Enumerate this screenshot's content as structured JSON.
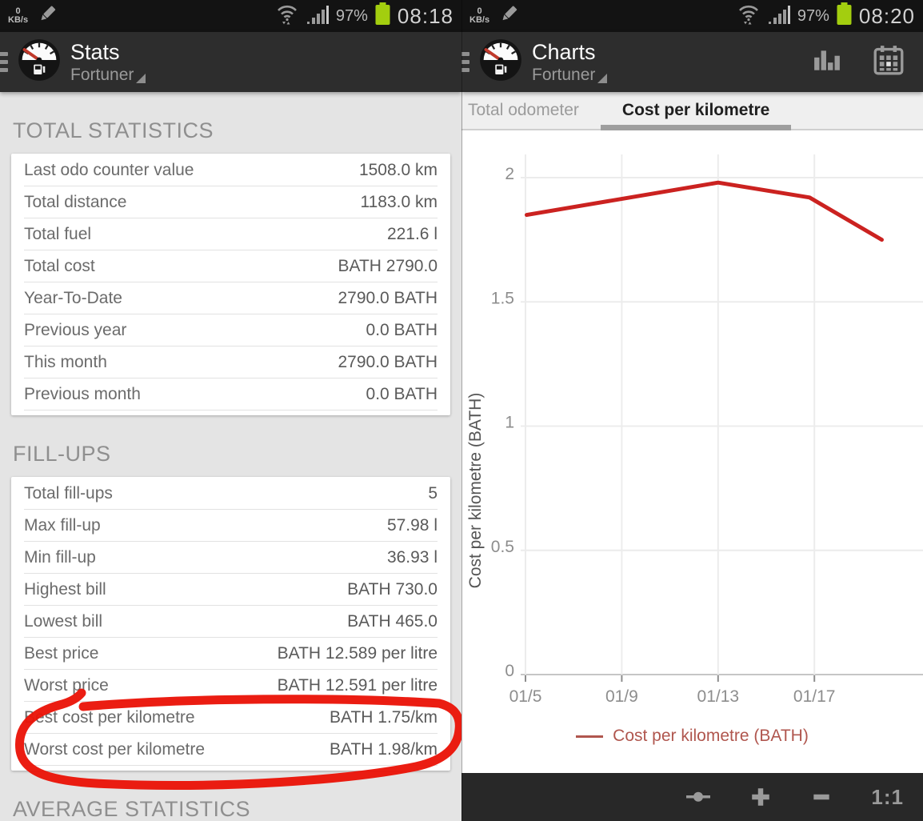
{
  "colors": {
    "chart_line_red": "#cb2220",
    "legend_red": "#b0564e",
    "annotation_red": "#ea1408",
    "battery_green": "#a3ce0f",
    "statusbar_icon_gray": "#9a9a9a",
    "grid_gray": "#ececec",
    "axis_gray": "#c6c6c6",
    "tick_label_gray": "#8d8d8d"
  },
  "left_screen": {
    "status_bar": {
      "kbps_value": "0",
      "kbps_unit": "KB/s",
      "battery_percent": "97%",
      "time": "08:18",
      "icons": [
        "data-pencil-icon",
        "wifi-icon",
        "signal-icon",
        "battery-icon"
      ]
    },
    "header": {
      "title": "Stats",
      "subtitle": "Fortuner",
      "icons": [
        "menu-icon",
        "fuel-gauge-logo-icon",
        "dropdown-triangle-icon"
      ]
    },
    "sections": [
      {
        "title": "TOTAL STATISTICS",
        "rows": [
          {
            "label": "Last odo counter value",
            "value": "1508.0 km"
          },
          {
            "label": "Total distance",
            "value": "1183.0 km"
          },
          {
            "label": "Total fuel",
            "value": "221.6 l"
          },
          {
            "label": "Total cost",
            "value": "BATH 2790.0"
          },
          {
            "label": "Year-To-Date",
            "value": "2790.0 BATH"
          },
          {
            "label": "Previous year",
            "value": "0.0 BATH"
          },
          {
            "label": "This month",
            "value": "2790.0 BATH"
          },
          {
            "label": "Previous month",
            "value": "0.0 BATH"
          }
        ]
      },
      {
        "title": "FILL-UPS",
        "rows": [
          {
            "label": "Total fill-ups",
            "value": "5"
          },
          {
            "label": "Max fill-up",
            "value": "57.98 l"
          },
          {
            "label": "Min fill-up",
            "value": "36.93 l"
          },
          {
            "label": "Highest bill",
            "value": "BATH 730.0"
          },
          {
            "label": "Lowest bill",
            "value": "BATH 465.0"
          },
          {
            "label": "Best price",
            "value": "BATH 12.589 per litre"
          },
          {
            "label": "Worst price",
            "value": "BATH 12.591 per litre"
          },
          {
            "label": "Best cost per kilometre",
            "value": "BATH 1.75/km"
          },
          {
            "label": "Worst cost per kilometre",
            "value": "BATH 1.98/km"
          }
        ]
      }
    ],
    "cutoff_section_title": "AVERAGE STATISTICS",
    "annotation": {
      "type": "hand-drawn-circle",
      "color": "#ea1408",
      "target": "Best/Worst cost per kilometre rows"
    }
  },
  "right_screen": {
    "status_bar": {
      "kbps_value": "0",
      "kbps_unit": "KB/s",
      "battery_percent": "97%",
      "time": "08:20",
      "icons": [
        "data-pencil-icon",
        "wifi-icon",
        "signal-icon",
        "battery-icon"
      ]
    },
    "header": {
      "title": "Charts",
      "subtitle": "Fortuner",
      "icons": [
        "menu-icon",
        "fuel-gauge-logo-icon",
        "dropdown-triangle-icon"
      ],
      "actions": [
        {
          "icon": "bar-chart-icon"
        },
        {
          "icon": "calendar-icon"
        }
      ]
    },
    "tabs": [
      {
        "label": "Total odometer",
        "active": false
      },
      {
        "label": "Cost per kilometre",
        "active": true
      }
    ],
    "bottom_bar": {
      "reset_zoom_label": "1:1",
      "icons": [
        "focus-point-icon",
        "zoom-in-icon",
        "zoom-out-icon"
      ]
    }
  },
  "chart_data": {
    "type": "line",
    "title": "",
    "xlabel": "",
    "ylabel": "Cost per kilometre (BATH)",
    "x_tick_labels": [
      "01/5",
      "01/9",
      "01/13",
      "01/17"
    ],
    "x_tick_days": [
      5,
      9,
      13,
      17
    ],
    "y_ticks": [
      0,
      0.5,
      1,
      1.5,
      2
    ],
    "ylim": [
      0,
      2.15
    ],
    "xlim_days": [
      5,
      21.5
    ],
    "grid": true,
    "legend_position": "bottom-center",
    "legend": [
      {
        "label": "Cost per kilometre (BATH)",
        "color": "#b0564e"
      }
    ],
    "series": [
      {
        "name": "Cost per kilometre (BATH)",
        "color": "#cb2220",
        "points": [
          {
            "x_day": 5.05,
            "x_label": "01/5",
            "y": 1.85
          },
          {
            "x_day": 13,
            "x_label": "01/13",
            "y": 1.98
          },
          {
            "x_day": 16.8,
            "x_label": "01/16",
            "y": 1.92
          },
          {
            "x_day": 19.8,
            "x_label": "01/19",
            "y": 1.75
          }
        ]
      }
    ]
  }
}
